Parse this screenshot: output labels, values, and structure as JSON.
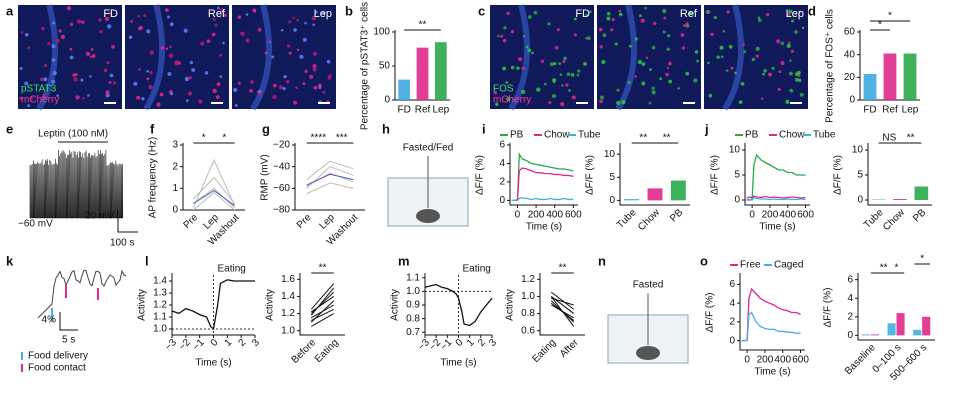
{
  "panel_labels": [
    "a",
    "b",
    "c",
    "d",
    "e",
    "f",
    "g",
    "h",
    "i",
    "j",
    "k",
    "l",
    "m",
    "n",
    "o"
  ],
  "images": {
    "a": {
      "tiles": [
        "FD",
        "Ref",
        "Lep"
      ],
      "stains": [
        "pSTAT3",
        "mCherry"
      ]
    },
    "c": {
      "tiles": [
        "FD",
        "Ref",
        "Lep"
      ],
      "stains": [
        "FOS",
        "mCherry"
      ]
    },
    "e": {
      "title": "Leptin (100 nM)",
      "potential": "−60 mV",
      "scale_v": "20 mV",
      "scale_t": "100 s"
    },
    "h": {
      "label": "Fasted/Fed"
    },
    "k": {
      "scale_y": "4%",
      "scale_t": "5 s",
      "legend": [
        "Food delivery",
        "Food contact"
      ]
    },
    "n": {
      "label": "Fasted"
    }
  },
  "chart_data": [
    {
      "type": "bar",
      "ylabel": "Percentage of pSTAT3⁺ cells",
      "categories": [
        "FD",
        "Ref",
        "Lep"
      ],
      "values": [
        30,
        77,
        85
      ],
      "colors": [
        "#3fa9e0",
        "#e0298a",
        "#2aa84a"
      ],
      "ylim": [
        0,
        100
      ],
      "yticks": [
        0,
        50,
        100
      ],
      "significance": [
        "**"
      ]
    },
    {
      "type": "bar",
      "ylabel": "Percentage of FOS⁺ cells",
      "categories": [
        "FD",
        "Ref",
        "Lep"
      ],
      "values": [
        23,
        41,
        41
      ],
      "colors": [
        "#3fa9e0",
        "#e0298a",
        "#2aa84a"
      ],
      "ylim": [
        0,
        60
      ],
      "yticks": [
        0,
        20,
        40,
        60
      ],
      "significance": [
        "*",
        "*"
      ]
    },
    {
      "type": "line",
      "ylabel": "AP frequency (Hz)",
      "categories": [
        "Pre",
        "Lep",
        "Washout"
      ],
      "ylim": [
        0,
        3
      ],
      "yticks": [
        0,
        1,
        2,
        3
      ],
      "significance": [
        "*",
        "*"
      ],
      "series": [
        {
          "color": "#bbbbbb",
          "values": [
            0.1,
            2.3,
            0.2
          ]
        },
        {
          "color": "#bbbbbb",
          "values": [
            0.5,
            1.5,
            0.3
          ]
        },
        {
          "color": "#bbbbbb",
          "values": [
            0,
            0.8,
            0
          ]
        },
        {
          "color": "#bbbbbb",
          "values": [
            0.3,
            1.0,
            0.1
          ]
        },
        {
          "color": "#4a5fb5",
          "values": [
            0.3,
            0.9,
            0.2
          ]
        }
      ]
    },
    {
      "type": "line",
      "ylabel": "RMP (mV)",
      "categories": [
        "Pre",
        "Lep",
        "Washout"
      ],
      "ylim": [
        -80,
        -20
      ],
      "yticks": [
        {
          "value": -80,
          "label": "−80"
        },
        {
          "value": -60,
          "label": "−60"
        },
        {
          "value": -40,
          "label": "−40"
        },
        {
          "value": -20,
          "label": "−20"
        }
      ],
      "significance": [
        "****",
        "***"
      ],
      "series": [
        {
          "color": "#bbbbbb",
          "values": [
            -60,
            -40,
            -48
          ]
        },
        {
          "color": "#bbbbbb",
          "values": [
            -52,
            -35,
            -42
          ]
        },
        {
          "color": "#bbbbbb",
          "values": [
            -65,
            -55,
            -60
          ]
        },
        {
          "color": "#bbbbbb",
          "values": [
            -58,
            -46,
            -54
          ]
        },
        {
          "color": "#4a5fb5",
          "values": [
            -57,
            -47,
            -52
          ]
        }
      ]
    },
    {
      "type": "line",
      "ylabel": "ΔF/F (%)",
      "xlabel": "Time (s)",
      "xlim": [
        -80,
        650
      ],
      "xticks": [
        0,
        200,
        400,
        600
      ],
      "ylim": [
        -0.5,
        6
      ],
      "yticks": [
        0,
        2,
        4,
        6
      ],
      "x": [
        -60,
        -20,
        0,
        20,
        50,
        100,
        150,
        200,
        250,
        300,
        350,
        400,
        450,
        500,
        550,
        600
      ],
      "series": [
        {
          "name": "PB",
          "color": "#2aa84a",
          "values": [
            0,
            0,
            0.1,
            5,
            4.5,
            4.3,
            4.0,
            3.9,
            3.8,
            3.7,
            3.6,
            3.5,
            3.4,
            3.4,
            3.3,
            3.2
          ]
        },
        {
          "name": "Chow",
          "color": "#e0298a",
          "values": [
            0,
            0,
            0,
            3.2,
            3.5,
            3.4,
            3.2,
            3.0,
            3.0,
            2.9,
            2.9,
            2.8,
            2.8,
            2.7,
            2.7,
            2.6
          ]
        },
        {
          "name": "Tube",
          "color": "#3fb0e0",
          "values": [
            0,
            0,
            0,
            0.2,
            0.3,
            0.2,
            0.1,
            0.2,
            0.1,
            0.1,
            0.2,
            0.1,
            0.1,
            0.2,
            0.1,
            0.1
          ]
        }
      ]
    },
    {
      "type": "bar",
      "ylabel": "ΔF/F (%)",
      "categories": [
        "Tube",
        "Chow",
        "PB"
      ],
      "values": [
        0.3,
        2.6,
        4.3
      ],
      "colors": [
        "#3fb0e0",
        "#e0298a",
        "#2aa84a"
      ],
      "ylim": [
        -1,
        12
      ],
      "yticks": [
        0,
        5,
        10
      ],
      "significance": [
        "**",
        "**"
      ]
    },
    {
      "type": "line",
      "ylabel": "ΔF/F (%)",
      "xlabel": "Time (s)",
      "xlim": [
        -80,
        650
      ],
      "xticks": [
        0,
        200,
        400,
        600
      ],
      "ylim": [
        -1,
        11
      ],
      "yticks": [
        0,
        5,
        10
      ],
      "x": [
        -60,
        -20,
        0,
        20,
        50,
        100,
        150,
        200,
        250,
        300,
        350,
        400,
        450,
        500,
        550,
        600
      ],
      "series": [
        {
          "name": "PB",
          "color": "#2aa84a",
          "values": [
            0,
            0,
            0.2,
            7,
            9,
            8,
            7.5,
            7,
            6.5,
            6,
            6,
            5.5,
            5.5,
            5,
            5,
            5
          ]
        },
        {
          "name": "Chow",
          "color": "#e0298a",
          "values": [
            0.5,
            0.6,
            0.4,
            0.8,
            0.6,
            0.5,
            0.7,
            0.5,
            0.6,
            0.5,
            0.4,
            0.5,
            0.6,
            0.5,
            0.4,
            0.5
          ]
        },
        {
          "name": "Tube",
          "color": "#3fb0e0",
          "values": [
            0.2,
            0.1,
            0,
            0.5,
            0.3,
            0.2,
            0.2,
            0.1,
            0.2,
            0.1,
            0.1,
            0.2,
            0.1,
            0.1,
            0.2,
            0.1
          ]
        }
      ]
    },
    {
      "type": "bar",
      "ylabel": "ΔF/F (%)",
      "categories": [
        "Tube",
        "Chow",
        "PB"
      ],
      "values": [
        0.1,
        0.2,
        2.7
      ],
      "colors": [
        "#3fb0e0",
        "#e0298a",
        "#2aa84a"
      ],
      "ylim": [
        -1,
        11
      ],
      "yticks": [
        0,
        5,
        10
      ],
      "significance": [
        "NS",
        "**"
      ]
    },
    {
      "type": "line",
      "ylabel": "Activity",
      "xlabel": "Time (s)",
      "annotation": "Eating",
      "ref_x": 0,
      "ref_y": 1.0,
      "xlim": [
        -3,
        3
      ],
      "xticks": [
        {
          "value": -3,
          "label": "−3"
        },
        {
          "value": -2,
          "label": "−2"
        },
        {
          "value": -1,
          "label": "−1"
        },
        0,
        1,
        2,
        3
      ],
      "ylim": [
        0.95,
        1.45
      ],
      "yticks": [
        {
          "value": 1.0,
          "label": "1.0"
        },
        1.1,
        1.2,
        1.3,
        1.4
      ],
      "x": [
        -3,
        -2.5,
        -2,
        -1.5,
        -1,
        -0.5,
        -0.2,
        0,
        0.3,
        0.5,
        1,
        1.5,
        2,
        2.5,
        3
      ],
      "series": [
        {
          "color": "#111111",
          "values": [
            1.15,
            1.13,
            1.17,
            1.15,
            1.12,
            1.1,
            1.02,
            1.0,
            1.2,
            1.38,
            1.41,
            1.4,
            1.4,
            1.4,
            1.4
          ]
        }
      ]
    },
    {
      "type": "line",
      "ylabel": "Activity",
      "categories": [
        "Before",
        "Eating"
      ],
      "ylim": [
        0.95,
        1.65
      ],
      "yticks": [
        {
          "value": 1.0,
          "label": "1.0"
        },
        1.2,
        1.4,
        1.6
      ],
      "significance": [
        "**"
      ],
      "series": [
        {
          "color": "#111111",
          "values": [
            1.2,
            1.45
          ]
        },
        {
          "color": "#111111",
          "values": [
            1.15,
            1.3
          ]
        },
        {
          "color": "#111111",
          "values": [
            1.1,
            1.35
          ]
        },
        {
          "color": "#111111",
          "values": [
            1.25,
            1.55
          ]
        },
        {
          "color": "#111111",
          "values": [
            1.05,
            1.2
          ]
        },
        {
          "color": "#111111",
          "values": [
            1.18,
            1.5
          ]
        },
        {
          "color": "#111111",
          "values": [
            1.22,
            1.4
          ]
        },
        {
          "color": "#111111",
          "values": [
            1.12,
            1.25
          ]
        }
      ]
    },
    {
      "type": "line",
      "ylabel": "Activity",
      "xlabel": "Time (s)",
      "annotation": "Eating",
      "ref_x": 0,
      "ref_y": 1.0,
      "xlim": [
        -3,
        3
      ],
      "xticks": [
        {
          "value": -3,
          "label": "−3"
        },
        {
          "value": -2,
          "label": "−2"
        },
        {
          "value": -1,
          "label": "−1"
        },
        0,
        1,
        2,
        3
      ],
      "ylim": [
        0.68,
        1.12
      ],
      "yticks": [
        0.7,
        0.8,
        0.9,
        {
          "value": 1.0,
          "label": "1.0"
        },
        1.1
      ],
      "x": [
        -3,
        -2.5,
        -2,
        -1.5,
        -1,
        -0.5,
        -0.2,
        0,
        0.3,
        0.5,
        1,
        1.5,
        2,
        2.5,
        3
      ],
      "series": [
        {
          "color": "#111111",
          "values": [
            1.03,
            1.04,
            1.05,
            1.03,
            1.02,
            1.0,
            0.98,
            0.95,
            0.85,
            0.76,
            0.75,
            0.78,
            0.85,
            0.9,
            0.95
          ]
        }
      ]
    },
    {
      "type": "line",
      "ylabel": "Activity",
      "categories": [
        "Eating",
        "After"
      ],
      "ylim": [
        0.55,
        1.25
      ],
      "yticks": [
        0.6,
        0.8,
        {
          "value": 1.0,
          "label": "1.0"
        },
        1.2
      ],
      "significance": [
        "**"
      ],
      "series": [
        {
          "color": "#111111",
          "values": [
            1.0,
            0.8
          ]
        },
        {
          "color": "#111111",
          "values": [
            0.95,
            0.7
          ]
        },
        {
          "color": "#111111",
          "values": [
            1.05,
            0.85
          ]
        },
        {
          "color": "#111111",
          "values": [
            0.9,
            0.75
          ]
        },
        {
          "color": "#111111",
          "values": [
            1.0,
            0.65
          ]
        },
        {
          "color": "#111111",
          "values": [
            0.98,
            0.9
          ]
        },
        {
          "color": "#111111",
          "values": [
            0.92,
            0.72
          ]
        }
      ]
    },
    {
      "type": "line",
      "ylabel": "ΔF/F (%)",
      "xlabel": "Time (s)",
      "xlim": [
        -80,
        650
      ],
      "xticks": [
        0,
        200,
        400,
        600
      ],
      "ylim": [
        -1,
        7
      ],
      "yticks": [
        0,
        2,
        4,
        6
      ],
      "x": [
        -60,
        -20,
        0,
        20,
        50,
        100,
        150,
        200,
        250,
        300,
        350,
        400,
        450,
        500,
        550,
        600
      ],
      "series": [
        {
          "name": "Free",
          "color": "#e0298a",
          "values": [
            0,
            0,
            0.1,
            4.5,
            5.5,
            5,
            4.5,
            4.2,
            4,
            3.8,
            3.5,
            3.3,
            3.2,
            3,
            3,
            2.8
          ]
        },
        {
          "name": "Caged",
          "color": "#3fb0e0",
          "values": [
            0,
            0,
            0,
            2.8,
            3,
            2,
            1.5,
            1.3,
            1.2,
            1.2,
            1,
            1,
            0.9,
            0.9,
            0.8,
            0.8
          ]
        }
      ]
    },
    {
      "type": "bar",
      "ylabel": "ΔF/F (%)",
      "categories": [
        "Baseline",
        "0–100 s",
        "500–600 s"
      ],
      "ylim": [
        -0.5,
        6.5
      ],
      "yticks": [
        0,
        2,
        4,
        6
      ],
      "significance": [
        "**",
        "*",
        "*"
      ],
      "series": [
        {
          "color": "#3fb0e0",
          "values": [
            0.1,
            1.3,
            0.6
          ]
        },
        {
          "color": "#e0298a",
          "values": [
            0.1,
            2.4,
            2.0
          ]
        }
      ]
    }
  ]
}
